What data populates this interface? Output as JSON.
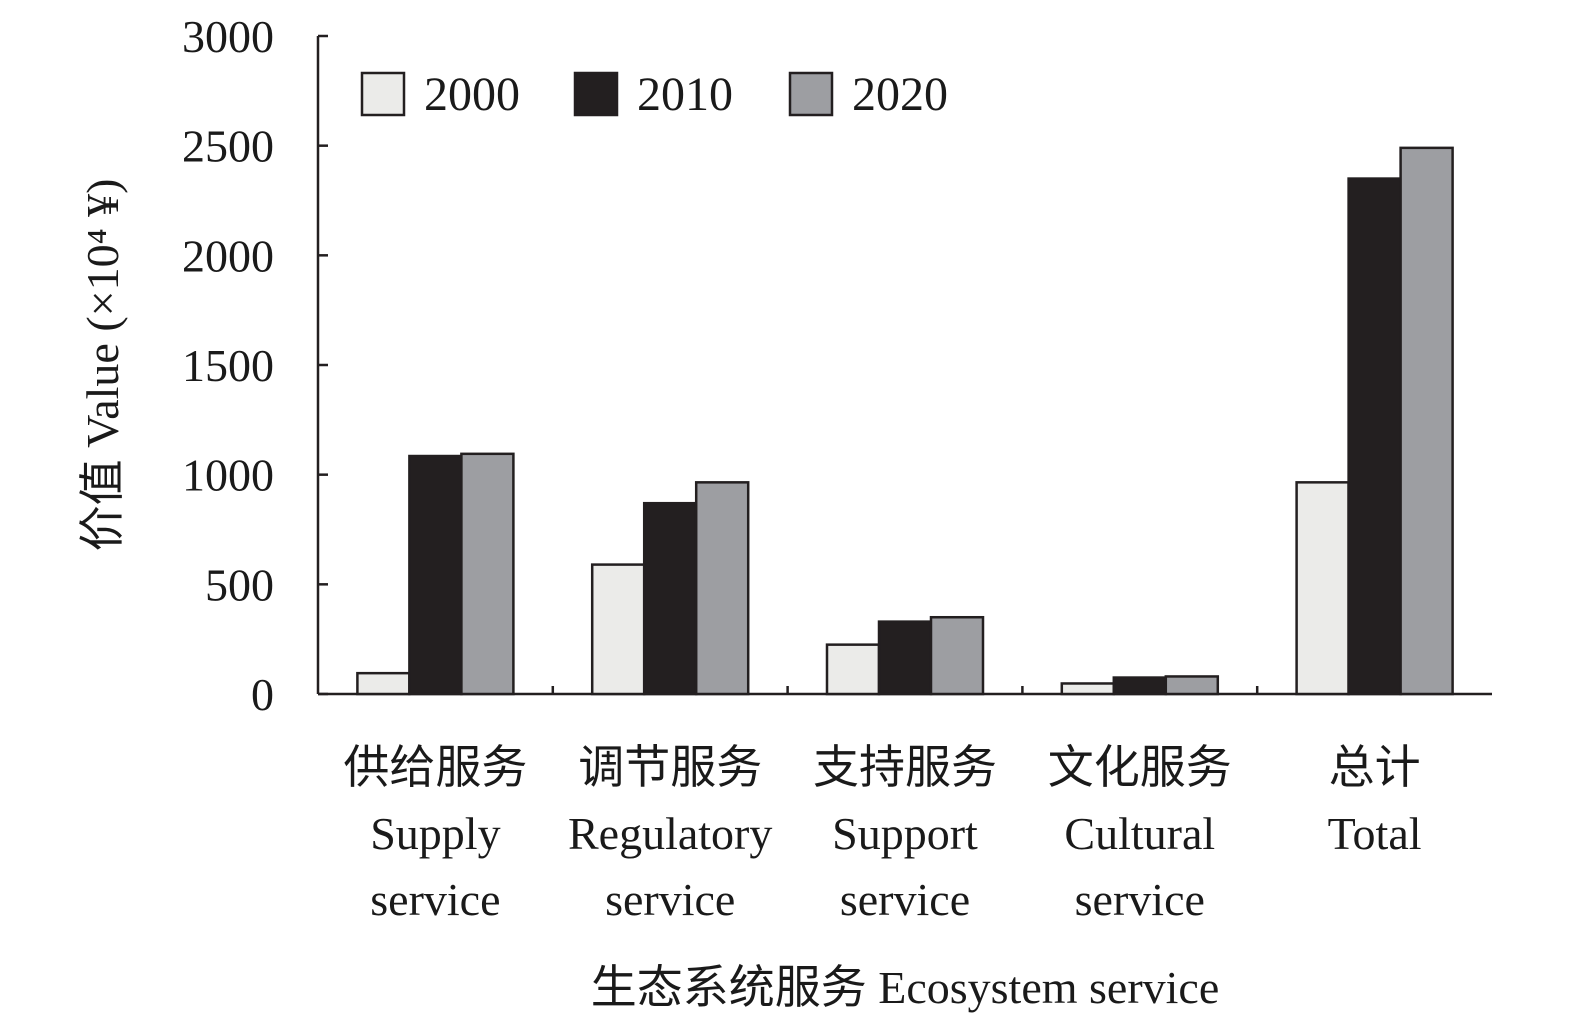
{
  "chart_data": {
    "type": "bar",
    "title": "",
    "xlabel": "生态系统服务 Ecosystem service",
    "ylabel": "价值 Value (×10⁴ ¥)",
    "ylim": [
      0,
      3000
    ],
    "yticks": [
      "0",
      "500",
      "1000",
      "1500",
      "2000",
      "2500",
      "3000"
    ],
    "grid": false,
    "legend_position": "top-left",
    "categories": [
      [
        "供给服务",
        "Supply",
        "service"
      ],
      [
        "调节服务",
        "Regulatory",
        "service"
      ],
      [
        "支持服务",
        "Support",
        "service"
      ],
      [
        "文化服务",
        "Cultural",
        "service"
      ],
      [
        "总计",
        "Total"
      ]
    ],
    "series": [
      {
        "name": "2000",
        "color": "#ebebe9",
        "values": [
          95,
          590,
          225,
          48,
          965
        ]
      },
      {
        "name": "2010",
        "color": "#231f20",
        "values": [
          1085,
          870,
          330,
          75,
          2350
        ]
      },
      {
        "name": "2020",
        "color": "#9d9ea2",
        "values": [
          1095,
          965,
          350,
          80,
          2490
        ]
      }
    ]
  }
}
